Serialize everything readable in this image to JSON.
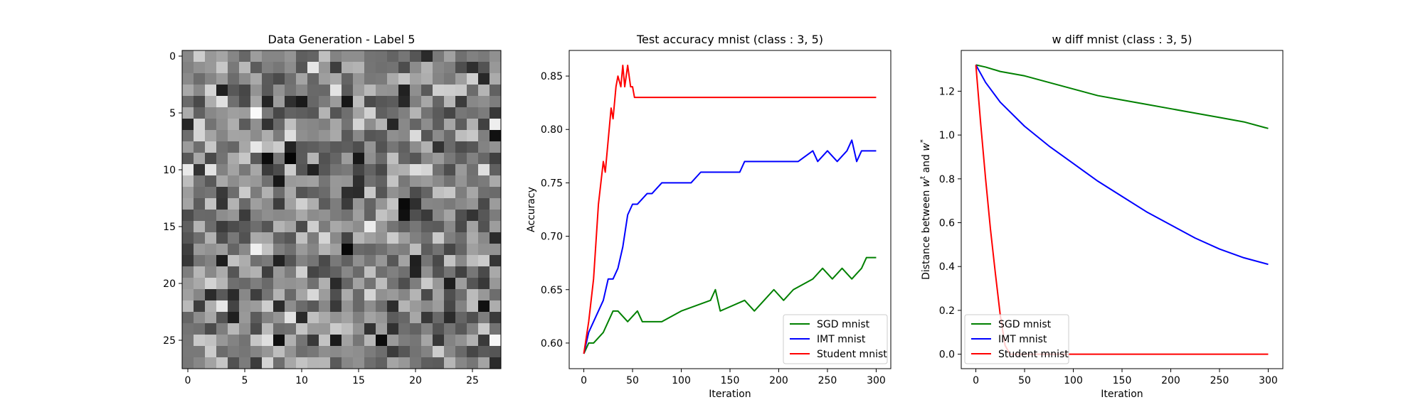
{
  "chart_data": [
    {
      "type": "heatmap",
      "title": "Data Generation - Label 5",
      "xlabel": "",
      "ylabel": "",
      "xlim": [
        -0.5,
        27.5
      ],
      "ylim": [
        27.5,
        -0.5
      ],
      "xticks": [
        0,
        5,
        10,
        15,
        20,
        25
      ],
      "yticks": [
        0,
        5,
        10,
        15,
        20,
        25
      ],
      "colormap": "gray",
      "rows": 28,
      "cols": 28,
      "grid": false
    },
    {
      "type": "line",
      "title": "Test accuracy mnist (class : 3, 5)",
      "xlabel": "Iteration",
      "ylabel": "Accuracy",
      "xlim": [
        -15,
        315
      ],
      "ylim": [
        0.576,
        0.874
      ],
      "xticks": [
        0,
        50,
        100,
        150,
        200,
        250,
        300
      ],
      "yticks": [
        0.6,
        0.65,
        0.7,
        0.75,
        0.8,
        0.85
      ],
      "grid": false,
      "legend_position": "lower-right",
      "series": [
        {
          "name": "SGD mnist",
          "color": "#008000",
          "x": [
            0,
            5,
            10,
            20,
            25,
            30,
            35,
            45,
            55,
            60,
            80,
            100,
            130,
            135,
            140,
            165,
            175,
            185,
            195,
            205,
            215,
            235,
            245,
            255,
            265,
            275,
            285,
            290,
            300
          ],
          "y": [
            0.59,
            0.6,
            0.6,
            0.61,
            0.62,
            0.63,
            0.63,
            0.62,
            0.63,
            0.62,
            0.62,
            0.63,
            0.64,
            0.65,
            0.63,
            0.64,
            0.63,
            0.64,
            0.65,
            0.64,
            0.65,
            0.66,
            0.67,
            0.66,
            0.67,
            0.66,
            0.67,
            0.68,
            0.68
          ]
        },
        {
          "name": "IMT mnist",
          "color": "#0000ff",
          "x": [
            0,
            5,
            10,
            15,
            20,
            25,
            30,
            35,
            40,
            45,
            50,
            55,
            65,
            70,
            80,
            85,
            90,
            95,
            105,
            110,
            120,
            130,
            140,
            150,
            160,
            165,
            175,
            185,
            200,
            220,
            235,
            240,
            250,
            260,
            270,
            275,
            280,
            285,
            290,
            300
          ],
          "y": [
            0.59,
            0.61,
            0.62,
            0.63,
            0.64,
            0.66,
            0.66,
            0.67,
            0.69,
            0.72,
            0.73,
            0.73,
            0.74,
            0.74,
            0.75,
            0.75,
            0.75,
            0.75,
            0.75,
            0.75,
            0.76,
            0.76,
            0.76,
            0.76,
            0.76,
            0.77,
            0.77,
            0.77,
            0.77,
            0.77,
            0.78,
            0.77,
            0.78,
            0.77,
            0.78,
            0.79,
            0.77,
            0.78,
            0.78,
            0.78
          ]
        },
        {
          "name": "Student mnist",
          "color": "#ff0000",
          "x": [
            0,
            5,
            10,
            15,
            20,
            22,
            25,
            28,
            30,
            33,
            35,
            38,
            40,
            42,
            45,
            48,
            50,
            52,
            55,
            300
          ],
          "y": [
            0.59,
            0.62,
            0.66,
            0.73,
            0.77,
            0.76,
            0.79,
            0.82,
            0.81,
            0.84,
            0.85,
            0.84,
            0.86,
            0.84,
            0.86,
            0.84,
            0.84,
            0.83,
            0.83,
            0.83
          ]
        }
      ]
    },
    {
      "type": "line",
      "title": "w diff mnist (class : 3, 5)",
      "xlabel": "Iteration",
      "ylabel": "Distance between w^t and w^*",
      "xlim": [
        -15,
        315
      ],
      "ylim": [
        -0.066,
        1.386
      ],
      "xticks": [
        0,
        50,
        100,
        150,
        200,
        250,
        300
      ],
      "yticks": [
        0.0,
        0.2,
        0.4,
        0.6,
        0.8,
        1.0,
        1.2
      ],
      "grid": false,
      "legend_position": "lower-left",
      "series": [
        {
          "name": "SGD mnist",
          "color": "#008000",
          "x": [
            0,
            10,
            25,
            50,
            75,
            100,
            125,
            150,
            175,
            200,
            225,
            250,
            275,
            300
          ],
          "y": [
            1.32,
            1.31,
            1.29,
            1.27,
            1.24,
            1.21,
            1.18,
            1.16,
            1.14,
            1.12,
            1.1,
            1.08,
            1.06,
            1.03
          ]
        },
        {
          "name": "IMT mnist",
          "color": "#0000ff",
          "x": [
            0,
            10,
            25,
            50,
            75,
            100,
            125,
            150,
            175,
            200,
            225,
            250,
            275,
            300
          ],
          "y": [
            1.32,
            1.24,
            1.15,
            1.04,
            0.95,
            0.87,
            0.79,
            0.72,
            0.65,
            0.59,
            0.53,
            0.48,
            0.44,
            0.41
          ]
        },
        {
          "name": "Student mnist",
          "color": "#ff0000",
          "x": [
            0,
            5,
            10,
            15,
            20,
            25,
            30,
            35,
            40,
            45,
            50,
            300
          ],
          "y": [
            1.32,
            1.05,
            0.8,
            0.57,
            0.37,
            0.18,
            0.04,
            0.0,
            0.0,
            0.0,
            0.0,
            0.0
          ]
        }
      ]
    }
  ]
}
